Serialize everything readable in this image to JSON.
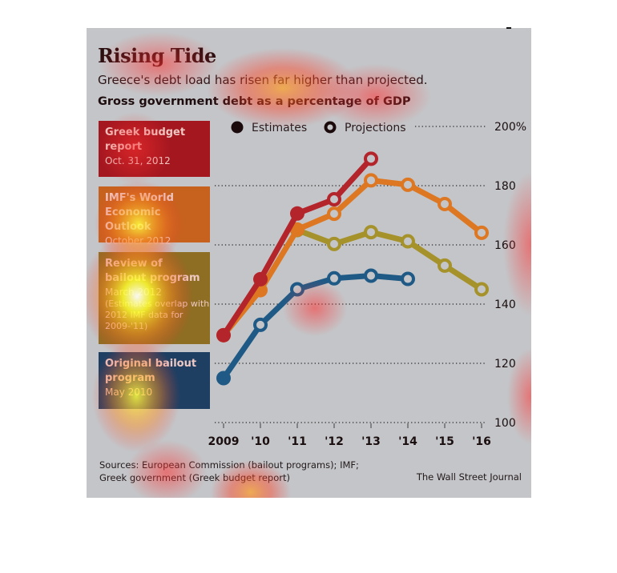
{
  "header": {
    "title": "Rising Tide",
    "subtitle": "Greece's debt load has risen far higher than projected.",
    "chart_heading": "Gross government debt as a percentage of GDP"
  },
  "legend_boxes": [
    {
      "name": "Greek budget report",
      "line1": "Greek budget",
      "line2": "report",
      "date": "Oct. 31, 2012",
      "note": "",
      "color": "#b3242b"
    },
    {
      "name": "IMF's World Economic Outlook",
      "line1": "IMF's World",
      "line2": "Economic Outlook",
      "date": "October 2012",
      "note": "",
      "color": "#dd7722"
    },
    {
      "name": "Review of bailout program",
      "line1": "Review of",
      "line2": "bailout program",
      "date": "March 2012",
      "note": "(Estimates overlap with 2012 IMF data for 2009-'11)",
      "color": "#a6922b"
    },
    {
      "name": "Original bailout program",
      "line1": "Original bailout",
      "line2": "program",
      "date": "May 2010",
      "note": "",
      "color": "#1f5a86"
    }
  ],
  "marker_legend": {
    "estimates": "Estimates",
    "projections": "Projections"
  },
  "footer": {
    "sources_line1": "Sources: European Commission (bailout programs); IMF;",
    "sources_line2": "Greek government (Greek budget report)",
    "credit": "The Wall Street Journal"
  },
  "chart_data": {
    "type": "line",
    "title": "Rising Tide",
    "subtitle": "Greece's debt load has risen far higher than projected.",
    "ylabel": "Gross government debt as a percentage of GDP",
    "xlabel": "",
    "x": [
      "2009",
      "'10",
      "'11",
      "'12",
      "'13",
      "'14",
      "'15",
      "'16"
    ],
    "ylim": [
      100,
      200
    ],
    "yticks": [
      100,
      120,
      140,
      160,
      180,
      200
    ],
    "ytick_labels": [
      "100",
      "120",
      "140",
      "160",
      "180",
      "200%"
    ],
    "grid": true,
    "grid_style": "dotted horizontal",
    "legend": "top",
    "marker_legend": {
      "filled": "Estimates",
      "hollow": "Projections"
    },
    "series": [
      {
        "name": "Original bailout program, May 2010",
        "color": "#1f5a86",
        "values": [
          115,
          133,
          145,
          148.7,
          149.6,
          148.5,
          null,
          null
        ],
        "estimate": [
          true,
          false,
          false,
          false,
          false,
          false,
          null,
          null
        ]
      },
      {
        "name": "Review of bailout program, March 2012",
        "color": "#a6922b",
        "values": [
          null,
          null,
          165,
          160.3,
          164.3,
          161.2,
          153,
          145
        ],
        "estimate": [
          null,
          null,
          true,
          false,
          false,
          false,
          false,
          false
        ]
      },
      {
        "name": "IMF's World Economic Outlook, October 2012",
        "color": "#dd7722",
        "values": [
          129.5,
          144.7,
          165.2,
          170.5,
          181.8,
          180.3,
          173.8,
          164.1
        ],
        "estimate": [
          true,
          true,
          true,
          false,
          false,
          false,
          false,
          false
        ]
      },
      {
        "name": "Greek budget report, Oct. 31, 2012",
        "color": "#b3242b",
        "values": [
          129.5,
          148.4,
          170.6,
          175.4,
          189.1,
          null,
          null,
          null
        ],
        "estimate": [
          true,
          true,
          true,
          false,
          false,
          null,
          null,
          null
        ]
      }
    ]
  }
}
